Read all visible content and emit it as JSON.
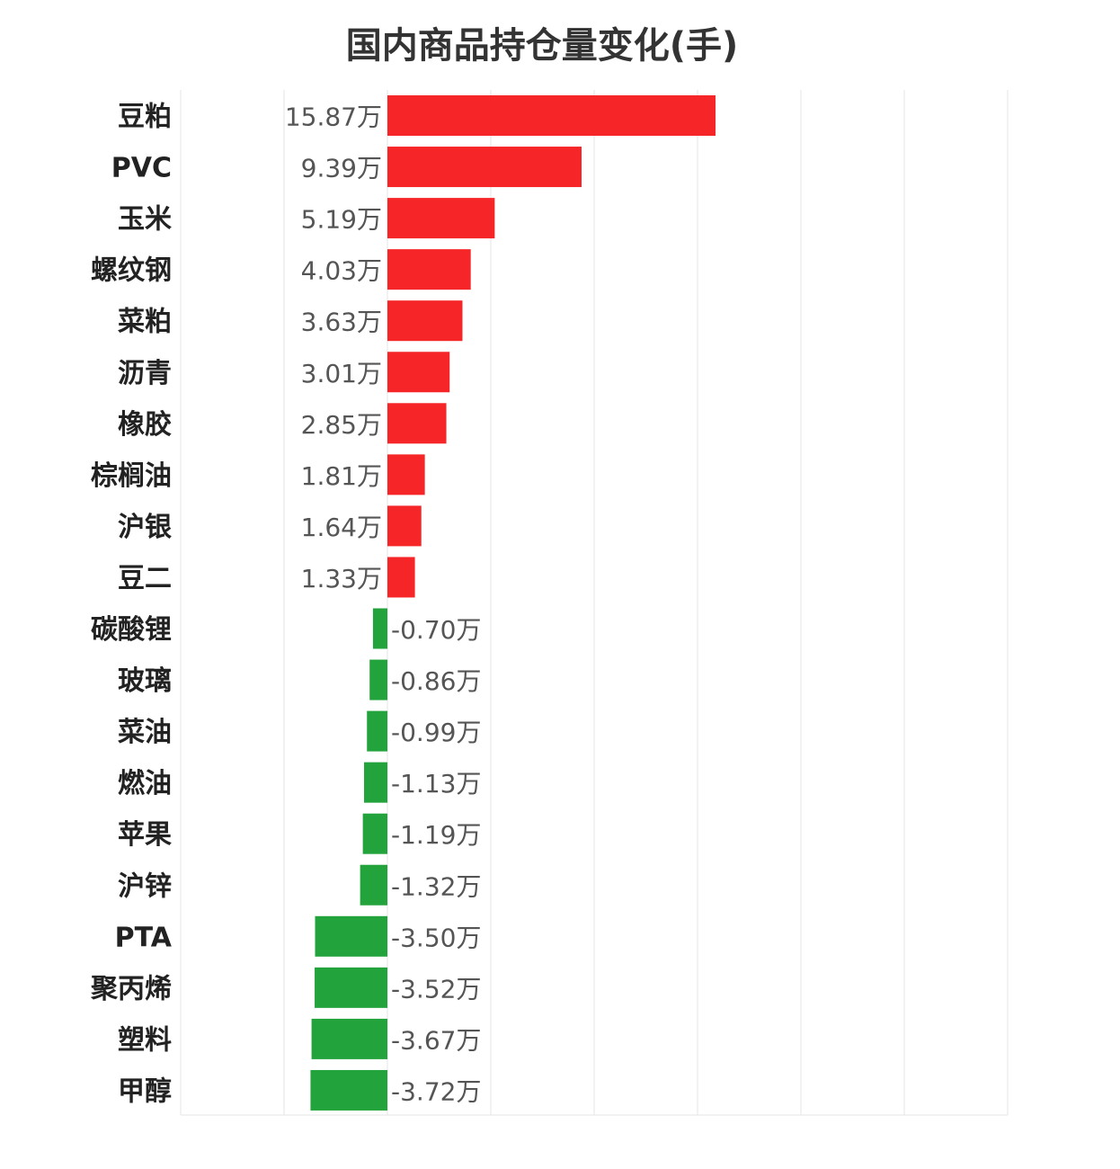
{
  "chart_data": {
    "type": "bar",
    "orientation": "horizontal",
    "title": "国内商品持仓量变化(手)",
    "xlabel": "",
    "ylabel": "",
    "grid": true,
    "xlim": [
      -10,
      30
    ],
    "unit_suffix": "万",
    "colors": {
      "positive": "#f52528",
      "negative": "#22a33b"
    },
    "categories": [
      "豆粕",
      "PVC",
      "玉米",
      "螺纹钢",
      "菜粕",
      "沥青",
      "橡胶",
      "棕榈油",
      "沪银",
      "豆二",
      "碳酸锂",
      "玻璃",
      "菜油",
      "燃油",
      "苹果",
      "沪锌",
      "PTA",
      "聚丙烯",
      "塑料",
      "甲醇"
    ],
    "values": [
      15.87,
      9.39,
      5.19,
      4.03,
      3.63,
      3.01,
      2.85,
      1.81,
      1.64,
      1.33,
      -0.7,
      -0.86,
      -0.99,
      -1.13,
      -1.19,
      -1.32,
      -3.5,
      -3.52,
      -3.67,
      -3.72
    ],
    "value_labels": [
      "15.87万",
      "9.39万",
      "5.19万",
      "4.03万",
      "3.63万",
      "3.01万",
      "2.85万",
      "1.81万",
      "1.64万",
      "1.33万",
      "-0.70万",
      "-0.86万",
      "-0.99万",
      "-1.13万",
      "-1.19万",
      "-1.32万",
      "-3.50万",
      "-3.52万",
      "-3.67万",
      "-3.72万"
    ]
  }
}
